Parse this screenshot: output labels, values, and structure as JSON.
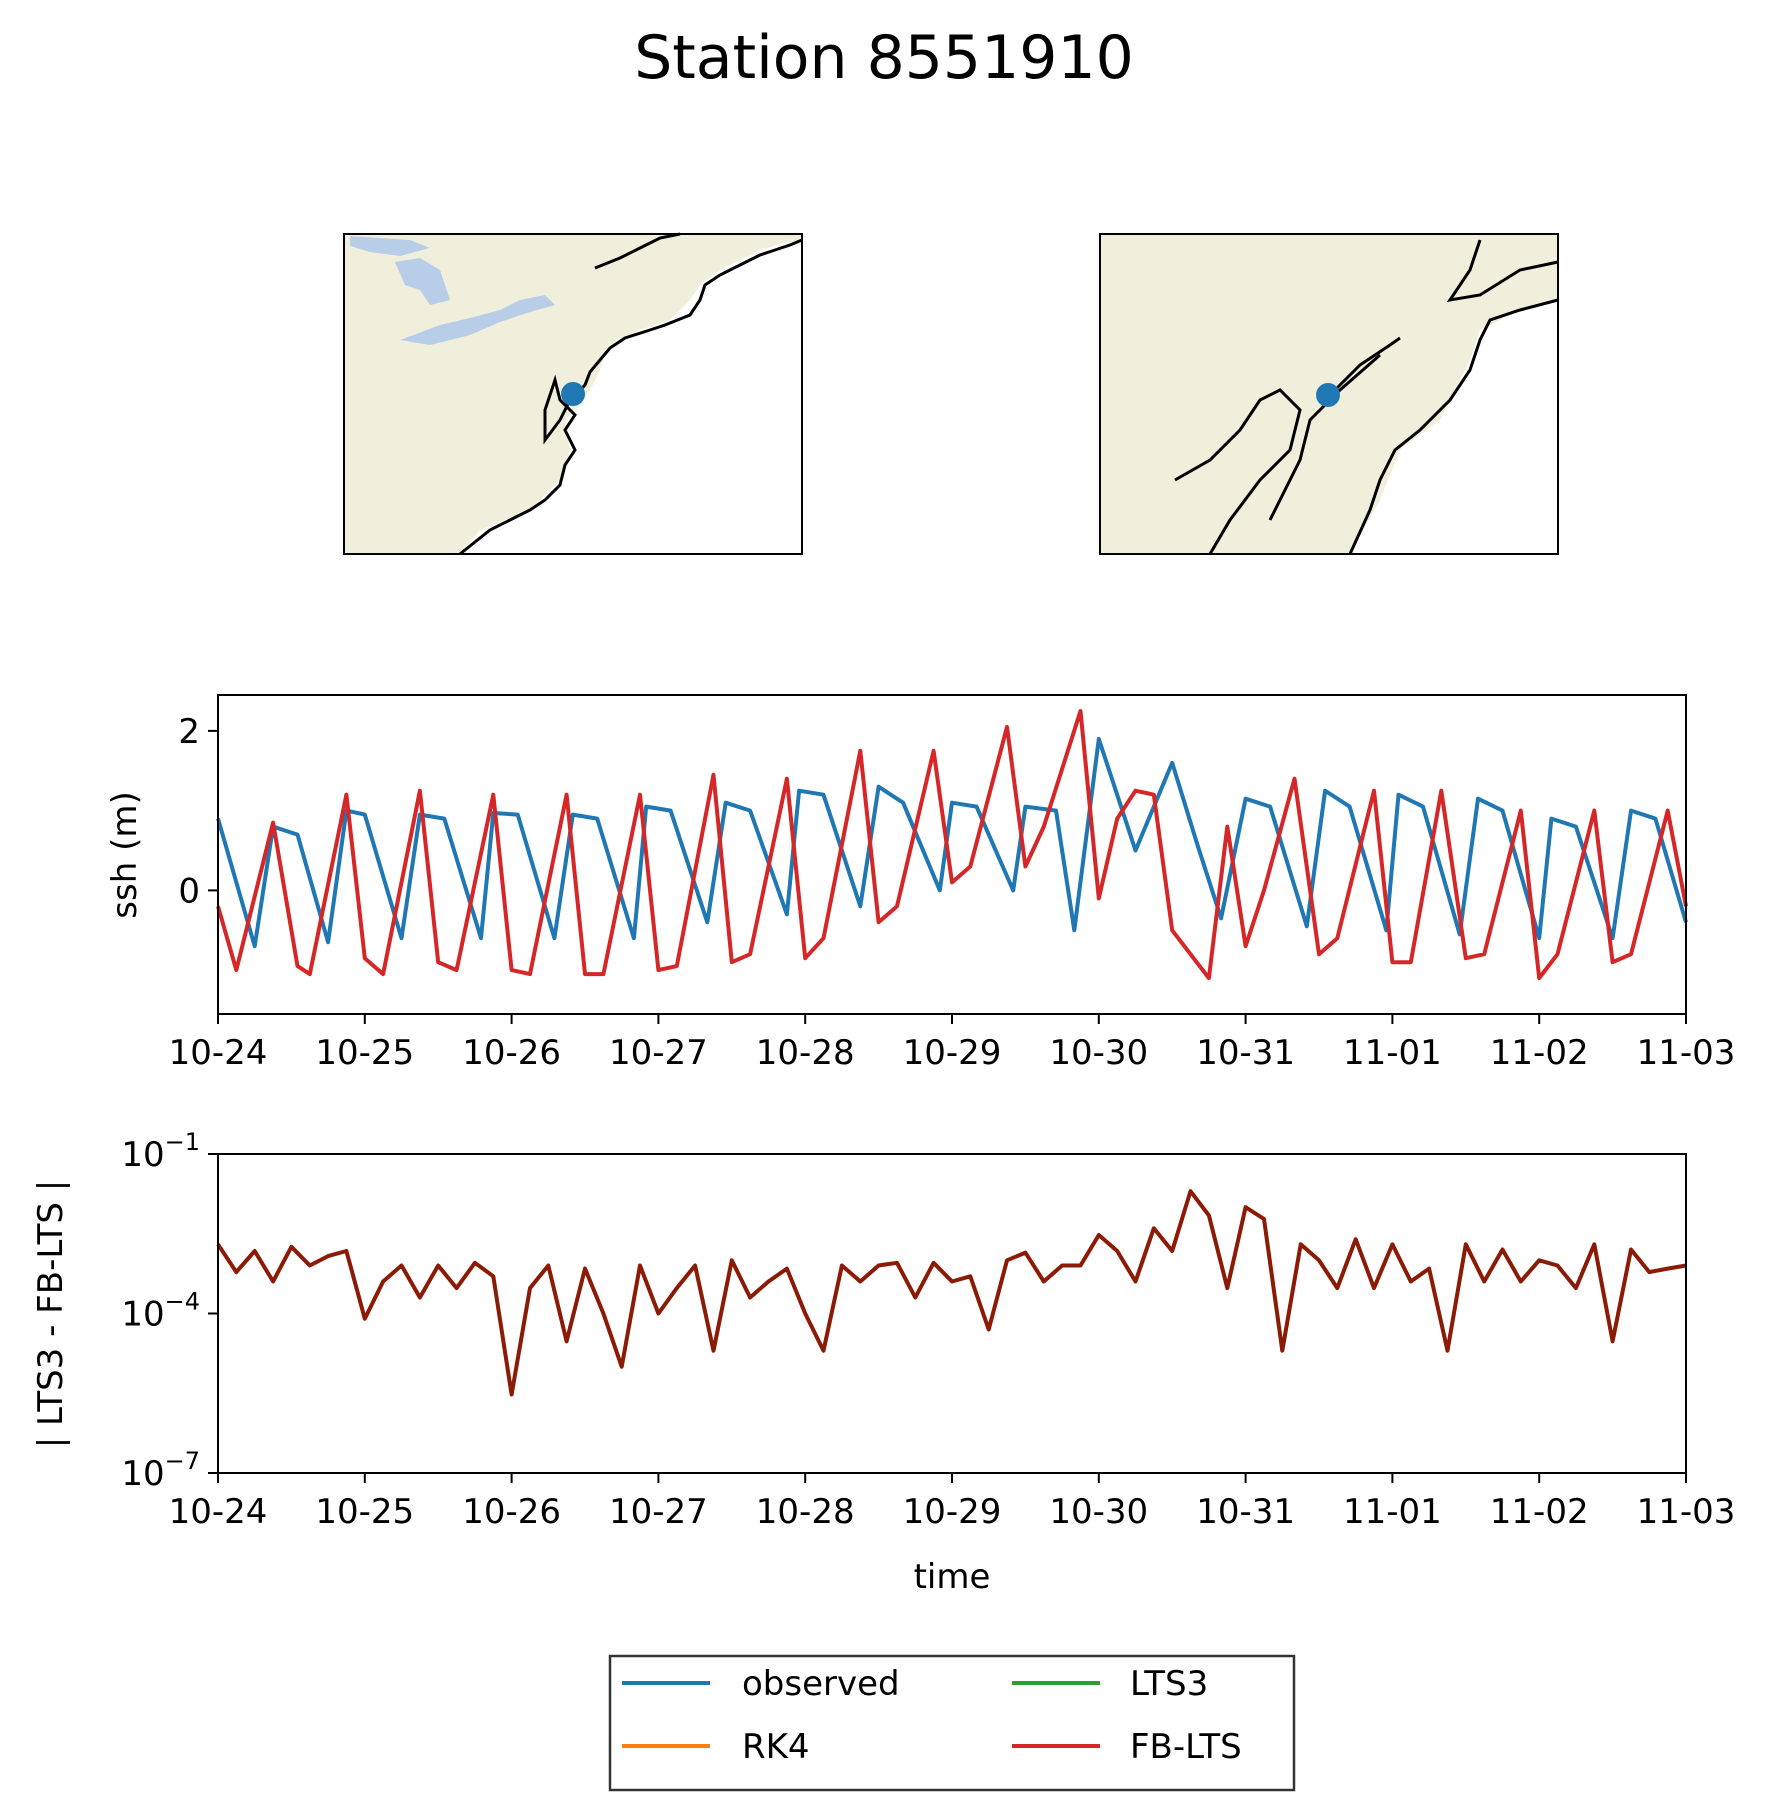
{
  "figure": {
    "title": "Station 8551910"
  },
  "maps": [
    {
      "name": "regional",
      "land_color": "#efefdb",
      "lake_color": "#b7cde8",
      "ocean_color": "#ffffff",
      "station_color": "#1f77b4"
    },
    {
      "name": "local",
      "land_color": "#efefdb",
      "ocean_color": "#ffffff",
      "station_color": "#1f77b4"
    }
  ],
  "legend": {
    "columns": 2,
    "placement": "bottom-center",
    "entries": [
      {
        "label": "observed",
        "color": "#1f77b4"
      },
      {
        "label": "LTS3",
        "color": "#2ca02c"
      },
      {
        "label": "RK4",
        "color": "#ff7f0e"
      },
      {
        "label": "FB-LTS",
        "color": "#d62728"
      }
    ]
  },
  "chart_data": [
    {
      "type": "line",
      "ylabel": "ssh (m)",
      "xlabel": "",
      "x_ticks": [
        "10-24",
        "10-25",
        "10-26",
        "10-27",
        "10-28",
        "10-29",
        "10-30",
        "10-31",
        "11-01",
        "11-02",
        "11-03"
      ],
      "xlim": [
        "10-24",
        "11-03"
      ],
      "ylim": [
        -1.55,
        2.45
      ],
      "y_ticks": [
        0,
        2
      ],
      "y_tick_labels": [
        "0",
        "2"
      ],
      "grid": false,
      "series": [
        {
          "name": "observed",
          "color": "#1f77b4",
          "x": [
            "10-24 00:00",
            "10-24 06:00",
            "10-24 09:00",
            "10-24 13:00",
            "10-24 18:00",
            "10-24 21:00",
            "10-25 00:00",
            "10-25 06:00",
            "10-25 09:00",
            "10-25 13:00",
            "10-25 19:00",
            "10-25 21:00",
            "10-26 01:00",
            "10-26 07:00",
            "10-26 10:00",
            "10-26 14:00",
            "10-26 20:00",
            "10-26 22:00",
            "10-27 02:00",
            "10-27 08:00",
            "10-27 11:00",
            "10-27 15:00",
            "10-27 21:00",
            "10-27 23:00",
            "10-28 03:00",
            "10-28 09:00",
            "10-28 12:00",
            "10-28 16:00",
            "10-28 22:00",
            "10-29 00:00",
            "10-29 04:00",
            "10-29 10:00",
            "10-29 12:00",
            "10-29 17:00",
            "10-29 20:00",
            "10-30 00:00",
            "10-30 06:00",
            "10-30 12:00",
            "10-30 16:00",
            "10-30 20:00",
            "10-31 00:00",
            "10-31 04:00",
            "10-31 10:00",
            "10-31 13:00",
            "10-31 17:00",
            "10-31 23:00",
            "11-01 01:00",
            "11-01 05:00",
            "11-01 11:00",
            "11-01 14:00",
            "11-01 18:00",
            "11-02 00:00",
            "11-02 02:00",
            "11-02 06:00",
            "11-02 12:00",
            "11-02 15:00",
            "11-02 19:00",
            "11-03 00:00"
          ],
          "values": [
            0.9,
            -0.7,
            0.8,
            0.7,
            -0.65,
            1.0,
            0.95,
            -0.6,
            0.95,
            0.9,
            -0.6,
            0.97,
            0.95,
            -0.6,
            0.95,
            0.9,
            -0.6,
            1.05,
            1.0,
            -0.4,
            1.1,
            1.0,
            -0.3,
            1.25,
            1.2,
            -0.2,
            1.3,
            1.1,
            0.0,
            1.1,
            1.05,
            0.0,
            1.05,
            1.0,
            -0.5,
            1.9,
            0.5,
            1.6,
            0.6,
            -0.35,
            1.15,
            1.05,
            -0.45,
            1.25,
            1.05,
            -0.5,
            1.2,
            1.05,
            -0.55,
            1.15,
            1.0,
            -0.6,
            0.9,
            0.8,
            -0.6,
            1.0,
            0.9,
            -0.4
          ]
        },
        {
          "name": "FB-LTS",
          "color": "#d62728",
          "x": [
            "10-24 00:00",
            "10-24 03:00",
            "10-24 09:00",
            "10-24 13:00",
            "10-24 15:00",
            "10-24 21:00",
            "10-25 00:00",
            "10-25 03:00",
            "10-25 09:00",
            "10-25 12:00",
            "10-25 15:00",
            "10-25 21:00",
            "10-26 00:00",
            "10-26 03:00",
            "10-26 09:00",
            "10-26 12:00",
            "10-26 15:00",
            "10-26 21:00",
            "10-27 00:00",
            "10-27 03:00",
            "10-27 09:00",
            "10-27 12:00",
            "10-27 15:00",
            "10-27 21:00",
            "10-28 00:00",
            "10-28 03:00",
            "10-28 09:00",
            "10-28 12:00",
            "10-28 15:00",
            "10-28 21:00",
            "10-29 00:00",
            "10-29 03:00",
            "10-29 09:00",
            "10-29 12:00",
            "10-29 15:00",
            "10-29 21:00",
            "10-30 00:00",
            "10-30 03:00",
            "10-30 06:00",
            "10-30 09:00",
            "10-30 12:00",
            "10-30 18:00",
            "10-30 21:00",
            "10-31 00:00",
            "10-31 03:00",
            "10-31 08:00",
            "10-31 12:00",
            "10-31 15:00",
            "10-31 21:00",
            "11-01 00:00",
            "11-01 03:00",
            "11-01 08:00",
            "11-01 12:00",
            "11-01 15:00",
            "11-01 21:00",
            "11-02 00:00",
            "11-02 03:00",
            "11-02 09:00",
            "11-02 12:00",
            "11-02 15:00",
            "11-02 21:00",
            "11-03 00:00"
          ],
          "values": [
            -0.2,
            -1.0,
            0.85,
            -0.95,
            -1.05,
            1.2,
            -0.85,
            -1.05,
            1.25,
            -0.9,
            -1.0,
            1.2,
            -1.0,
            -1.05,
            1.2,
            -1.05,
            -1.05,
            1.2,
            -1.0,
            -0.95,
            1.45,
            -0.9,
            -0.8,
            1.4,
            -0.85,
            -0.6,
            1.75,
            -0.4,
            -0.2,
            1.75,
            0.1,
            0.3,
            2.05,
            0.3,
            0.8,
            2.25,
            -0.1,
            0.9,
            1.25,
            1.2,
            -0.5,
            -1.1,
            0.8,
            -0.7,
            0.0,
            1.4,
            -0.8,
            -0.6,
            1.25,
            -0.9,
            -0.9,
            1.25,
            -0.85,
            -0.8,
            1.0,
            -1.1,
            -0.8,
            1.0,
            -0.9,
            -0.8,
            1.0,
            -0.2
          ]
        }
      ]
    },
    {
      "type": "line",
      "ylabel": "| LTS3 - FB-LTS |",
      "xlabel": "time",
      "x_ticks": [
        "10-24",
        "10-25",
        "10-26",
        "10-27",
        "10-28",
        "10-29",
        "10-30",
        "10-31",
        "11-01",
        "11-02",
        "11-03"
      ],
      "xlim": [
        "10-24",
        "11-03"
      ],
      "y_scale": "log",
      "ylim": [
        1e-07,
        0.1
      ],
      "y_ticks": [
        1e-07,
        0.0001,
        0.1
      ],
      "y_tick_labels": [
        {
          "base": "10",
          "exp": "−7"
        },
        {
          "base": "10",
          "exp": "−4"
        },
        {
          "base": "10",
          "exp": "−1"
        }
      ],
      "grid": false,
      "series": [
        {
          "name": "| LTS3 - FB-LTS |",
          "color": "#8b1a06",
          "x": [
            "10-24 00:00",
            "10-24 03:00",
            "10-24 06:00",
            "10-24 09:00",
            "10-24 12:00",
            "10-24 15:00",
            "10-24 18:00",
            "10-24 21:00",
            "10-25 00:00",
            "10-25 03:00",
            "10-25 06:00",
            "10-25 09:00",
            "10-25 12:00",
            "10-25 15:00",
            "10-25 18:00",
            "10-25 21:00",
            "10-26 00:00",
            "10-26 03:00",
            "10-26 06:00",
            "10-26 09:00",
            "10-26 12:00",
            "10-26 15:00",
            "10-26 18:00",
            "10-26 21:00",
            "10-27 00:00",
            "10-27 03:00",
            "10-27 06:00",
            "10-27 09:00",
            "10-27 12:00",
            "10-27 15:00",
            "10-27 18:00",
            "10-27 21:00",
            "10-28 00:00",
            "10-28 03:00",
            "10-28 06:00",
            "10-28 09:00",
            "10-28 12:00",
            "10-28 15:00",
            "10-28 18:00",
            "10-28 21:00",
            "10-29 00:00",
            "10-29 03:00",
            "10-29 06:00",
            "10-29 09:00",
            "10-29 12:00",
            "10-29 15:00",
            "10-29 18:00",
            "10-29 21:00",
            "10-30 00:00",
            "10-30 03:00",
            "10-30 06:00",
            "10-30 09:00",
            "10-30 12:00",
            "10-30 15:00",
            "10-30 18:00",
            "10-30 21:00",
            "10-31 00:00",
            "10-31 03:00",
            "10-31 06:00",
            "10-31 09:00",
            "10-31 12:00",
            "10-31 15:00",
            "10-31 18:00",
            "10-31 21:00",
            "11-01 00:00",
            "11-01 03:00",
            "11-01 06:00",
            "11-01 09:00",
            "11-01 12:00",
            "11-01 15:00",
            "11-01 18:00",
            "11-01 21:00",
            "11-02 00:00",
            "11-02 03:00",
            "11-02 06:00",
            "11-02 09:00",
            "11-02 12:00",
            "11-02 15:00",
            "11-02 18:00",
            "11-02 21:00",
            "11-03 00:00"
          ],
          "values": [
            0.002,
            0.0006,
            0.0015,
            0.0004,
            0.0018,
            0.0008,
            0.0012,
            0.0015,
            8e-05,
            0.0004,
            0.0008,
            0.0002,
            0.0008,
            0.0003,
            0.0009,
            0.0005,
            3e-06,
            0.0003,
            0.0008,
            3e-05,
            0.0007,
            0.0001,
            1e-05,
            0.0008,
            0.0001,
            0.0003,
            0.0008,
            2e-05,
            0.001,
            0.0002,
            0.0004,
            0.0007,
            0.0001,
            2e-05,
            0.0008,
            0.0004,
            0.0008,
            0.0009,
            0.0002,
            0.0009,
            0.0004,
            0.0005,
            5e-05,
            0.001,
            0.0014,
            0.0004,
            0.0008,
            0.0008,
            0.003,
            0.0015,
            0.0004,
            0.004,
            0.0015,
            0.02,
            0.007,
            0.0003,
            0.01,
            0.006,
            2e-05,
            0.002,
            0.001,
            0.0003,
            0.0025,
            0.0003,
            0.002,
            0.0004,
            0.0007,
            2e-05,
            0.002,
            0.0004,
            0.0016,
            0.0004,
            0.001,
            0.0008,
            0.0003,
            0.002,
            3e-05,
            0.0016,
            0.0006,
            0.0007,
            0.0008
          ]
        }
      ]
    }
  ]
}
